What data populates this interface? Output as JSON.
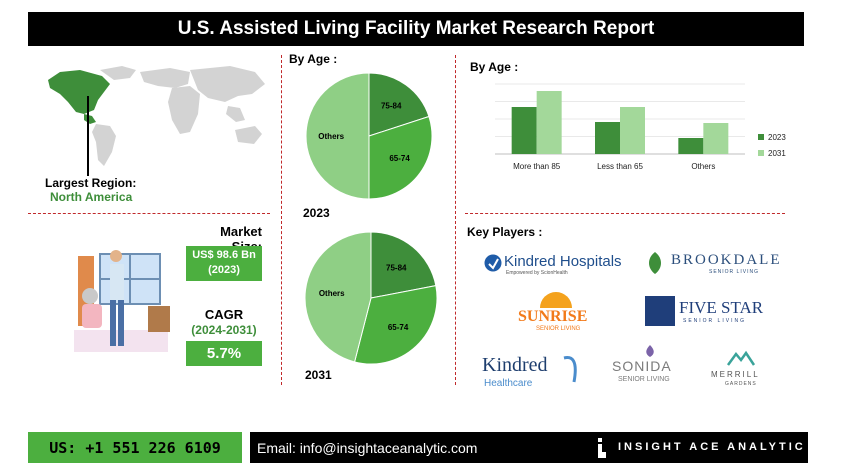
{
  "title": "U.S. Assisted Living Facility Market Research Report",
  "region": {
    "label": "Largest Region:",
    "value": "North America"
  },
  "market_size": {
    "label": "Market Size:",
    "value_line1": "US$ 98.6 Bn",
    "value_line2": "(2023)"
  },
  "cagr": {
    "label": "CAGR",
    "period": "(2024-2031)",
    "value": "5.7%"
  },
  "pie_section": {
    "heading": "By Age :"
  },
  "bar_section": {
    "heading": "By Age :"
  },
  "key_players": {
    "heading": "Key Players :",
    "logos": {
      "kindred_hospitals": "Kindred Hospitals",
      "kindred_hospitals_sub": "Empowered by ScionHealth",
      "brookdale": "BROOKDALE",
      "brookdale_sub": "SENIOR LIVING",
      "sunrise": "SUNRISE",
      "sunrise_sub": "SENIOR LIVING",
      "five_star": "FIVE STAR",
      "five_star_sub": "SENIOR LIVING",
      "kindred_healthcare": "Kindred",
      "kindred_healthcare_sub": "Healthcare",
      "sonida": "SONIDA",
      "sonida_sub": "SENIOR LIVING",
      "merrill": "MERRILL",
      "merrill_sub": "GARDENS"
    }
  },
  "footer": {
    "phone": "US: +1 551 226 6109",
    "email": "Email: info@insightaceanalytic.com",
    "brand": "INSIGHT ACE ANALYTIC"
  },
  "colors": {
    "dark_green": "#3e8e3a",
    "mid_green": "#4caf3f",
    "light_green": "#8fcf85",
    "red_dash": "#c0292b"
  },
  "chart_data": [
    {
      "type": "pie",
      "title": "2023",
      "slices": [
        {
          "label": "75-84",
          "value": 20,
          "color": "#3e8e3a"
        },
        {
          "label": "65-74",
          "value": 30,
          "color": "#4caf3f"
        },
        {
          "label": "Others",
          "value": 50,
          "color": "#8fcf85"
        }
      ]
    },
    {
      "type": "pie",
      "title": "2031",
      "slices": [
        {
          "label": "75-84",
          "value": 22,
          "color": "#3e8e3a"
        },
        {
          "label": "65-74",
          "value": 32,
          "color": "#4caf3f"
        },
        {
          "label": "Others",
          "value": 46,
          "color": "#8fcf85"
        }
      ]
    },
    {
      "type": "bar",
      "categories": [
        "More than 85",
        "Less than 65",
        "Others"
      ],
      "series": [
        {
          "name": "2023",
          "values": [
            47,
            32,
            16
          ],
          "color": "#3e8e3a"
        },
        {
          "name": "2031",
          "values": [
            63,
            47,
            31
          ],
          "color": "#a3d89a"
        }
      ],
      "ylim": [
        0,
        70
      ],
      "grid": true,
      "legend": "right"
    }
  ]
}
